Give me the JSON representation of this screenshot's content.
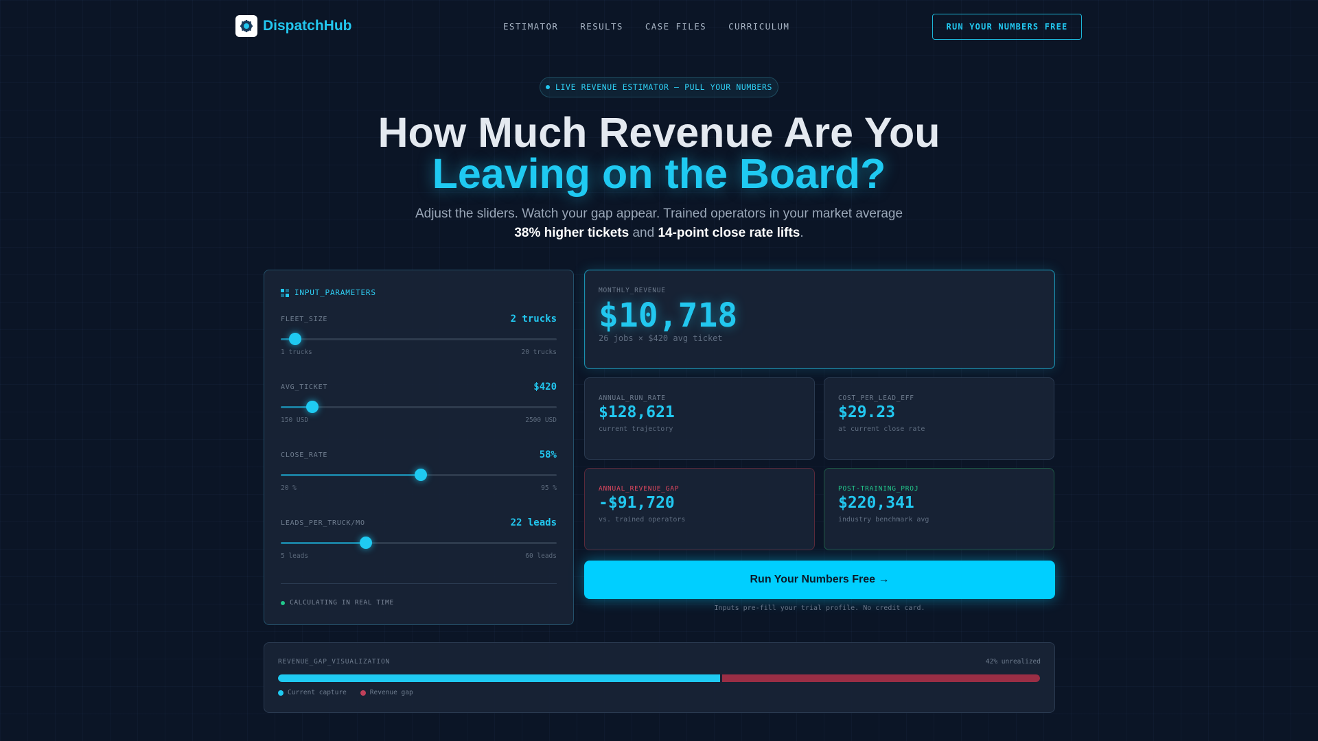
{
  "nav": {
    "logo_text": "DispatchHub",
    "links": [
      "ESTIMATOR",
      "RESULTS",
      "CASE FILES",
      "CURRICULUM"
    ],
    "cta": "RUN YOUR NUMBERS FREE"
  },
  "hero": {
    "pill": "LIVE REVENUE ESTIMATOR — PULL YOUR NUMBERS",
    "title_line1": "How Much Revenue Are You",
    "title_line2": "Leaving on the Board?",
    "sub_part1": "Adjust the sliders. Watch your gap appear. Trained operators in your market average",
    "sub_bold1": "38% higher tickets",
    "sub_and": "and",
    "sub_bold2": "14-point close rate lifts",
    "sub_end": "."
  },
  "inputs": {
    "title": "INPUT_PARAMETERS",
    "sliders": [
      {
        "label": "FLEET_SIZE",
        "value_text": "2 trucks",
        "min_text": "1 trucks",
        "max_text": "20 trucks",
        "min": 1,
        "max": 20,
        "value": 2
      },
      {
        "label": "AVG_TICKET",
        "value_text": "$420",
        "min_text": "150 USD",
        "max_text": "2500 USD",
        "min": 150,
        "max": 2500,
        "value": 420
      },
      {
        "label": "CLOSE_RATE",
        "value_text": "58%",
        "min_text": "20 %",
        "max_text": "95 %",
        "min": 20,
        "max": 95,
        "value": 58
      },
      {
        "label": "LEADS_PER_TRUCK/MO",
        "value_text": "22 leads",
        "min_text": "5 leads",
        "max_text": "60 leads",
        "min": 5,
        "max": 60,
        "value": 22
      }
    ],
    "status": "CALCULATING IN REAL TIME"
  },
  "metrics": {
    "monthly": {
      "label": "MONTHLY_REVENUE",
      "value": "$10,718",
      "note": "26 jobs × $420 avg ticket"
    },
    "annual_run_rate": {
      "label": "ANNUAL_RUN_RATE",
      "value": "$128,621",
      "note": "current trajectory"
    },
    "cost_per_lead": {
      "label": "COST_PER_LEAD_EFF",
      "value": "$29.23",
      "note": "at current close rate"
    },
    "revenue_gap": {
      "label": "ANNUAL_REVENUE_GAP",
      "value": "-$91,720",
      "note": "vs. trained operators"
    },
    "post_training": {
      "label": "POST-TRAINING_PROJ",
      "value": "$220,341",
      "note": "industry benchmark avg"
    }
  },
  "cta": {
    "label": "Run Your Numbers Free →",
    "note": "Inputs pre-fill your trial profile. No credit card."
  },
  "viz": {
    "title": "REVENUE_GAP_VISUALIZATION",
    "pct_text": "42% unrealized",
    "current_fraction": 0.58,
    "legend_current": "Current capture",
    "legend_gap": "Revenue gap"
  },
  "colors": {
    "accent": "#1fcaf2",
    "gap": "#9a2e45",
    "positive": "#22c98c",
    "negative": "#e2485f"
  }
}
